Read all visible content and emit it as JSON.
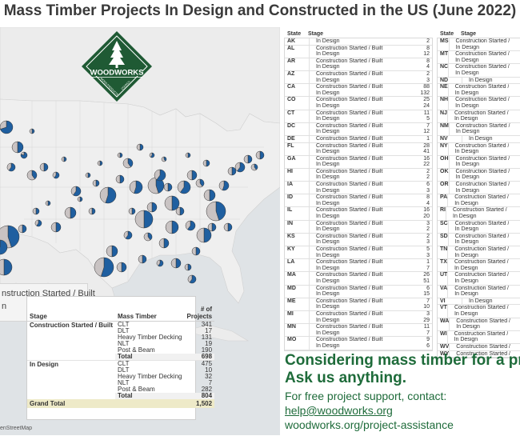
{
  "title": "Mass Timber Projects In Design and Constructed in the US (June 2022)",
  "legend": {
    "construction": "nstruction Started / Built",
    "design": "n"
  },
  "map_credit": "enStreetMap",
  "logo": {
    "name": "WOODWORKS",
    "sub_left": "WOOD PRODUCTS",
    "sub_right": "COUNCIL"
  },
  "colors": {
    "construction": "#1f5fa0",
    "design": "#c9c3c3",
    "green": "#1e6b3a"
  },
  "summary": {
    "headers": {
      "stage": "Stage",
      "timber": "Mass Timber",
      "count": "# of Projects"
    },
    "groups": [
      {
        "stage": "Construction Started / Built",
        "rows": [
          {
            "type": "CLT",
            "value": "341"
          },
          {
            "type": "DLT",
            "value": "17"
          },
          {
            "type": "Heavy Timber Decking",
            "value": "131"
          },
          {
            "type": "NLT",
            "value": "19"
          },
          {
            "type": "Post & Beam",
            "value": "190"
          }
        ],
        "total_label": "Total",
        "total": "698"
      },
      {
        "stage": "In Design",
        "rows": [
          {
            "type": "CLT",
            "value": "475"
          },
          {
            "type": "DLT",
            "value": "10"
          },
          {
            "type": "Heavy Timber Decking",
            "value": "32"
          },
          {
            "type": "NLT",
            "value": "7"
          },
          {
            "type": "Post & Beam",
            "value": "282"
          }
        ],
        "total_label": "Total",
        "total": "804"
      }
    ],
    "grand_label": "Grand Total",
    "grand_total": "1,502"
  },
  "state_headers": {
    "state": "State",
    "stage": "Stage"
  },
  "states_left": [
    {
      "st": "AK",
      "rows": [
        [
          "In Design",
          "2"
        ]
      ]
    },
    {
      "st": "AL",
      "rows": [
        [
          "Construction Started / Built",
          "8"
        ],
        [
          "In Design",
          "12"
        ]
      ]
    },
    {
      "st": "AR",
      "rows": [
        [
          "Construction Started / Built",
          "8"
        ],
        [
          "In Design",
          "4"
        ]
      ]
    },
    {
      "st": "AZ",
      "rows": [
        [
          "Construction Started / Built",
          "2"
        ],
        [
          "In Design",
          "3"
        ]
      ]
    },
    {
      "st": "CA",
      "rows": [
        [
          "Construction Started / Built",
          "88"
        ],
        [
          "In Design",
          "132"
        ]
      ]
    },
    {
      "st": "CO",
      "rows": [
        [
          "Construction Started / Built",
          "25"
        ],
        [
          "In Design",
          "24"
        ]
      ]
    },
    {
      "st": "CT",
      "rows": [
        [
          "Construction Started / Built",
          "11"
        ],
        [
          "In Design",
          "5"
        ]
      ]
    },
    {
      "st": "DC",
      "rows": [
        [
          "Construction Started / Built",
          "7"
        ],
        [
          "In Design",
          "12"
        ]
      ]
    },
    {
      "st": "DE",
      "rows": [
        [
          "Construction Started / Built",
          "1"
        ]
      ]
    },
    {
      "st": "FL",
      "rows": [
        [
          "Construction Started / Built",
          "28"
        ],
        [
          "In Design",
          "41"
        ]
      ]
    },
    {
      "st": "GA",
      "rows": [
        [
          "Construction Started / Built",
          "16"
        ],
        [
          "In Design",
          "22"
        ]
      ]
    },
    {
      "st": "HI",
      "rows": [
        [
          "Construction Started / Built",
          "2"
        ],
        [
          "In Design",
          "2"
        ]
      ]
    },
    {
      "st": "IA",
      "rows": [
        [
          "Construction Started / Built",
          "6"
        ],
        [
          "In Design",
          "3"
        ]
      ]
    },
    {
      "st": "ID",
      "rows": [
        [
          "Construction Started / Built",
          "8"
        ],
        [
          "In Design",
          "4"
        ]
      ]
    },
    {
      "st": "IL",
      "rows": [
        [
          "Construction Started / Built",
          "16"
        ],
        [
          "In Design",
          "20"
        ]
      ]
    },
    {
      "st": "IN",
      "rows": [
        [
          "Construction Started / Built",
          "3"
        ],
        [
          "In Design",
          "2"
        ]
      ]
    },
    {
      "st": "KS",
      "rows": [
        [
          "Construction Started / Built",
          "2"
        ],
        [
          "In Design",
          "3"
        ]
      ]
    },
    {
      "st": "KY",
      "rows": [
        [
          "Construction Started / Built",
          "5"
        ],
        [
          "In Design",
          "3"
        ]
      ]
    },
    {
      "st": "LA",
      "rows": [
        [
          "Construction Started / Built",
          "1"
        ],
        [
          "In Design",
          "7"
        ]
      ]
    },
    {
      "st": "MA",
      "rows": [
        [
          "Construction Started / Built",
          "26"
        ],
        [
          "In Design",
          "51"
        ]
      ]
    },
    {
      "st": "MD",
      "rows": [
        [
          "Construction Started / Built",
          "6"
        ],
        [
          "In Design",
          "15"
        ]
      ]
    },
    {
      "st": "ME",
      "rows": [
        [
          "Construction Started / Built",
          "7"
        ],
        [
          "In Design",
          "10"
        ]
      ]
    },
    {
      "st": "MI",
      "rows": [
        [
          "Construction Started / Built",
          "3"
        ],
        [
          "In Design",
          "29"
        ]
      ]
    },
    {
      "st": "MN",
      "rows": [
        [
          "Construction Started / Built",
          "11"
        ],
        [
          "In Design",
          "7"
        ]
      ]
    },
    {
      "st": "MO",
      "rows": [
        [
          "Construction Started / Built",
          "9"
        ],
        [
          "In Design",
          "6"
        ]
      ]
    }
  ],
  "states_right": [
    {
      "st": "MS",
      "rows": [
        [
          "Construction Started /",
          ""
        ],
        [
          "In Design",
          ""
        ]
      ]
    },
    {
      "st": "MT",
      "rows": [
        [
          "Construction Started /",
          ""
        ],
        [
          "In Design",
          ""
        ]
      ]
    },
    {
      "st": "NC",
      "rows": [
        [
          "Construction Started /",
          ""
        ],
        [
          "In Design",
          ""
        ]
      ]
    },
    {
      "st": "ND",
      "rows": [
        [
          "In Design",
          ""
        ]
      ]
    },
    {
      "st": "NE",
      "rows": [
        [
          "Construction Started /",
          ""
        ],
        [
          "In Design",
          ""
        ]
      ]
    },
    {
      "st": "NH",
      "rows": [
        [
          "Construction Started /",
          ""
        ],
        [
          "In Design",
          ""
        ]
      ]
    },
    {
      "st": "NJ",
      "rows": [
        [
          "Construction Started /",
          ""
        ],
        [
          "In Design",
          ""
        ]
      ]
    },
    {
      "st": "NM",
      "rows": [
        [
          "Construction Started /",
          ""
        ],
        [
          "In Design",
          ""
        ]
      ]
    },
    {
      "st": "NV",
      "rows": [
        [
          "In Design",
          ""
        ]
      ]
    },
    {
      "st": "NY",
      "rows": [
        [
          "Construction Started /",
          ""
        ],
        [
          "In Design",
          ""
        ]
      ]
    },
    {
      "st": "OH",
      "rows": [
        [
          "Construction Started /",
          ""
        ],
        [
          "In Design",
          ""
        ]
      ]
    },
    {
      "st": "OK",
      "rows": [
        [
          "Construction Started /",
          ""
        ],
        [
          "In Design",
          ""
        ]
      ]
    },
    {
      "st": "OR",
      "rows": [
        [
          "Construction Started /",
          ""
        ],
        [
          "In Design",
          ""
        ]
      ]
    },
    {
      "st": "PA",
      "rows": [
        [
          "Construction Started /",
          ""
        ],
        [
          "In Design",
          ""
        ]
      ]
    },
    {
      "st": "RI",
      "rows": [
        [
          "Construction Started /",
          ""
        ],
        [
          "In Design",
          ""
        ]
      ]
    },
    {
      "st": "SC",
      "rows": [
        [
          "Construction Started /",
          ""
        ],
        [
          "In Design",
          ""
        ]
      ]
    },
    {
      "st": "SD",
      "rows": [
        [
          "Construction Started /",
          ""
        ],
        [
          "In Design",
          ""
        ]
      ]
    },
    {
      "st": "TN",
      "rows": [
        [
          "Construction Started /",
          ""
        ],
        [
          "In Design",
          ""
        ]
      ]
    },
    {
      "st": "TX",
      "rows": [
        [
          "Construction Started /",
          ""
        ],
        [
          "In Design",
          ""
        ]
      ]
    },
    {
      "st": "UT",
      "rows": [
        [
          "Construction Started /",
          ""
        ],
        [
          "In Design",
          ""
        ]
      ]
    },
    {
      "st": "VA",
      "rows": [
        [
          "Construction Started /",
          ""
        ],
        [
          "In Design",
          ""
        ]
      ]
    },
    {
      "st": "VI",
      "rows": [
        [
          "In Design",
          ""
        ]
      ]
    },
    {
      "st": "VT",
      "rows": [
        [
          "Construction Started /",
          ""
        ],
        [
          "In Design",
          ""
        ]
      ]
    },
    {
      "st": "WA",
      "rows": [
        [
          "Construction Started /",
          ""
        ],
        [
          "In Design",
          ""
        ]
      ]
    },
    {
      "st": "WI",
      "rows": [
        [
          "Construction Started /",
          ""
        ],
        [
          "In Design",
          ""
        ]
      ]
    },
    {
      "st": "WV",
      "rows": [
        [
          "Construction Started /",
          ""
        ]
      ]
    },
    {
      "st": "WY",
      "rows": [
        [
          "Construction Started /",
          ""
        ]
      ]
    }
  ],
  "cta": {
    "line1": "Considering mass timber for a pro",
    "line2": "Ask us anything.",
    "line3": "For free project support, contact:",
    "email": "help@woodworks.org",
    "url": "woodworks.org/project-assistance"
  },
  "chart_data": {
    "type": "table",
    "title": "Mass Timber Projects In Design and Constructed in the US (June 2022)",
    "columns": [
      "Stage",
      "Mass Timber",
      "# of Projects"
    ],
    "series": [
      {
        "name": "Construction Started / Built",
        "categories": [
          "CLT",
          "DLT",
          "Heavy Timber Decking",
          "NLT",
          "Post & Beam"
        ],
        "values": [
          341,
          17,
          131,
          19,
          190
        ],
        "total": 698
      },
      {
        "name": "In Design",
        "categories": [
          "CLT",
          "DLT",
          "Heavy Timber Decking",
          "NLT",
          "Post & Beam"
        ],
        "values": [
          475,
          10,
          32,
          7,
          282
        ],
        "total": 804
      }
    ],
    "grand_total": 1502,
    "by_state": {
      "AK": {
        "In Design": 2
      },
      "AL": {
        "Construction Started / Built": 8,
        "In Design": 12
      },
      "AR": {
        "Construction Started / Built": 8,
        "In Design": 4
      },
      "AZ": {
        "Construction Started / Built": 2,
        "In Design": 3
      },
      "CA": {
        "Construction Started / Built": 88,
        "In Design": 132
      },
      "CO": {
        "Construction Started / Built": 25,
        "In Design": 24
      },
      "CT": {
        "Construction Started / Built": 11,
        "In Design": 5
      },
      "DC": {
        "Construction Started / Built": 7,
        "In Design": 12
      },
      "DE": {
        "Construction Started / Built": 1
      },
      "FL": {
        "Construction Started / Built": 28,
        "In Design": 41
      },
      "GA": {
        "Construction Started / Built": 16,
        "In Design": 22
      },
      "HI": {
        "Construction Started / Built": 2,
        "In Design": 2
      },
      "IA": {
        "Construction Started / Built": 6,
        "In Design": 3
      },
      "ID": {
        "Construction Started / Built": 8,
        "In Design": 4
      },
      "IL": {
        "Construction Started / Built": 16,
        "In Design": 20
      },
      "IN": {
        "Construction Started / Built": 3,
        "In Design": 2
      },
      "KS": {
        "Construction Started / Built": 2,
        "In Design": 3
      },
      "KY": {
        "Construction Started / Built": 5,
        "In Design": 3
      },
      "LA": {
        "Construction Started / Built": 1,
        "In Design": 7
      },
      "MA": {
        "Construction Started / Built": 26,
        "In Design": 51
      },
      "MD": {
        "Construction Started / Built": 6,
        "In Design": 15
      },
      "ME": {
        "Construction Started / Built": 7,
        "In Design": 10
      },
      "MI": {
        "Construction Started / Built": 3,
        "In Design": 29
      },
      "MN": {
        "Construction Started / Built": 11,
        "In Design": 7
      },
      "MO": {
        "Construction Started / Built": 9,
        "In Design": 6
      }
    }
  }
}
